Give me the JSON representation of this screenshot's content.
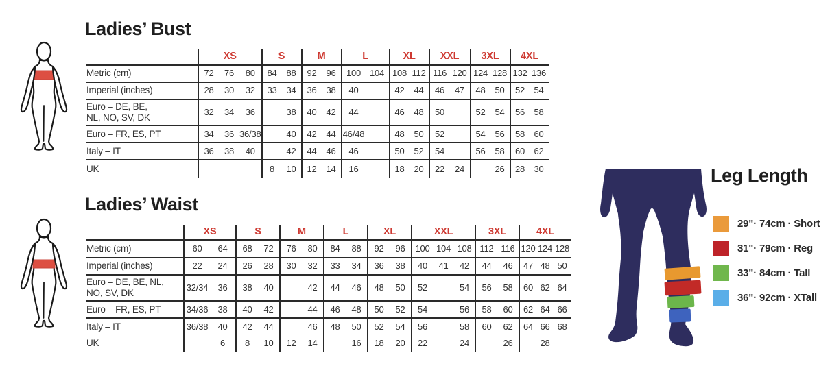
{
  "colors": {
    "accent_red": "#ce3a32",
    "band_red": "#dd4f42",
    "silhouette_navy": "#2e2d5e",
    "table_line": "#2a2a2a",
    "leg_band_orange": "#e8992f",
    "leg_band_red": "#c22a27",
    "leg_band_green": "#6cb64b",
    "leg_band_blue": "#3e63be"
  },
  "bust": {
    "title": "Ladies’ Bust",
    "size_groups": [
      {
        "label": "XS",
        "cols": 3
      },
      {
        "label": "S",
        "cols": 2
      },
      {
        "label": "M",
        "cols": 2
      },
      {
        "label": "L",
        "cols": 2
      },
      {
        "label": "XL",
        "cols": 2
      },
      {
        "label": "XXL",
        "cols": 2
      },
      {
        "label": "3XL",
        "cols": 2
      },
      {
        "label": "4XL",
        "cols": 2
      }
    ],
    "rows": [
      {
        "label": "Metric (cm)",
        "cells": [
          [
            "72",
            "76",
            "80"
          ],
          [
            "84",
            "88"
          ],
          [
            "92",
            "96"
          ],
          [
            "100",
            "104"
          ],
          [
            "108",
            "112"
          ],
          [
            "116",
            "120"
          ],
          [
            "124",
            "128"
          ],
          [
            "132",
            "136"
          ]
        ]
      },
      {
        "label": "Imperial (inches)",
        "cells": [
          [
            "28",
            "30",
            "32"
          ],
          [
            "33",
            "34"
          ],
          [
            "36",
            "38"
          ],
          [
            "40",
            ""
          ],
          [
            "42",
            "44"
          ],
          [
            "46",
            "47"
          ],
          [
            "48",
            "50"
          ],
          [
            "52",
            "54"
          ]
        ]
      },
      {
        "label": "Euro –  DE, BE,\nNL, NO, SV, DK",
        "cells": [
          [
            "32",
            "34",
            "36"
          ],
          [
            "",
            "38"
          ],
          [
            "40",
            "42"
          ],
          [
            "44",
            ""
          ],
          [
            "46",
            "48"
          ],
          [
            "50",
            ""
          ],
          [
            "52",
            "54"
          ],
          [
            "56",
            "58"
          ]
        ]
      },
      {
        "label": "Euro – FR, ES, PT",
        "cells": [
          [
            "34",
            "36",
            "36/38"
          ],
          [
            "",
            "40"
          ],
          [
            "42",
            "44"
          ],
          [
            "46/48",
            ""
          ],
          [
            "48",
            "50"
          ],
          [
            "52",
            ""
          ],
          [
            "54",
            "56"
          ],
          [
            "58",
            "60"
          ]
        ]
      },
      {
        "label": "Italy – IT",
        "cells": [
          [
            "36",
            "38",
            "40"
          ],
          [
            "",
            "42"
          ],
          [
            "44",
            "46"
          ],
          [
            "46",
            ""
          ],
          [
            "50",
            "52"
          ],
          [
            "54",
            ""
          ],
          [
            "56",
            "58"
          ],
          [
            "60",
            "62"
          ]
        ]
      },
      {
        "label": "UK",
        "cells": [
          [
            "",
            "",
            ""
          ],
          [
            "8",
            "10"
          ],
          [
            "12",
            "14"
          ],
          [
            "16",
            ""
          ],
          [
            "18",
            "20"
          ],
          [
            "22",
            "24"
          ],
          [
            "",
            "26"
          ],
          [
            "28",
            "30"
          ]
        ]
      }
    ]
  },
  "waist": {
    "title": "Ladies’ Waist",
    "size_groups": [
      {
        "label": "XS",
        "cols": 2
      },
      {
        "label": "S",
        "cols": 2
      },
      {
        "label": "M",
        "cols": 2
      },
      {
        "label": "L",
        "cols": 2
      },
      {
        "label": "XL",
        "cols": 2
      },
      {
        "label": "XXL",
        "cols": 3
      },
      {
        "label": "3XL",
        "cols": 2
      },
      {
        "label": "4XL",
        "cols": 3
      }
    ],
    "rows": [
      {
        "label": "Metric (cm)",
        "cells": [
          [
            "60",
            "64"
          ],
          [
            "68",
            "72"
          ],
          [
            "76",
            "80"
          ],
          [
            "84",
            "88"
          ],
          [
            "92",
            "96"
          ],
          [
            "100",
            "104",
            "108"
          ],
          [
            "112",
            "116"
          ],
          [
            "120",
            "124",
            "128"
          ]
        ]
      },
      {
        "label": "Imperial (inches)",
        "cells": [
          [
            "22",
            "24"
          ],
          [
            "26",
            "28"
          ],
          [
            "30",
            "32"
          ],
          [
            "33",
            "34"
          ],
          [
            "36",
            "38"
          ],
          [
            "40",
            "41",
            "42"
          ],
          [
            "44",
            "46"
          ],
          [
            "47",
            "48",
            "50"
          ]
        ]
      },
      {
        "label": "Euro – DE, BE, NL,\nNO, SV, DK",
        "cells": [
          [
            "32/34",
            "36"
          ],
          [
            "38",
            "40"
          ],
          [
            "",
            "42"
          ],
          [
            "44",
            "46"
          ],
          [
            "48",
            "50"
          ],
          [
            "52",
            "",
            "54"
          ],
          [
            "56",
            "58"
          ],
          [
            "60",
            "62",
            "64"
          ]
        ]
      },
      {
        "label": "Euro – FR, ES, PT",
        "cells": [
          [
            "34/36",
            "38"
          ],
          [
            "40",
            "42"
          ],
          [
            "",
            "44"
          ],
          [
            "46",
            "48"
          ],
          [
            "50",
            "52"
          ],
          [
            "54",
            "",
            "56"
          ],
          [
            "58",
            "60"
          ],
          [
            "62",
            "64",
            "66"
          ]
        ]
      },
      {
        "label": "Italy – IT",
        "cells": [
          [
            "36/38",
            "40"
          ],
          [
            "42",
            "44"
          ],
          [
            "",
            "46"
          ],
          [
            "48",
            "50"
          ],
          [
            "52",
            "54"
          ],
          [
            "56",
            "",
            "58"
          ],
          [
            "60",
            "62"
          ],
          [
            "64",
            "66",
            "68"
          ]
        ]
      },
      {
        "label": "UK",
        "cells": [
          [
            "",
            "6"
          ],
          [
            "8",
            "10"
          ],
          [
            "12",
            "14"
          ],
          [
            "",
            "16"
          ],
          [
            "18",
            "20"
          ],
          [
            "22",
            "",
            "24"
          ],
          [
            "",
            "26"
          ],
          [
            "",
            "28",
            ""
          ]
        ]
      }
    ]
  },
  "leg_length": {
    "title": "Leg Length",
    "items": [
      {
        "id": "short",
        "swatch_color": "#ea9a3b",
        "label": "29\"· 74cm · Short"
      },
      {
        "id": "reg",
        "swatch_color": "#be2329",
        "label": "31\"· 79cm · Reg"
      },
      {
        "id": "tall",
        "swatch_color": "#70b74d",
        "label": "33\"· 84cm · Tall"
      },
      {
        "id": "xtall",
        "swatch_color": "#5aaee8",
        "label": "36\"· 92cm · XTall"
      }
    ]
  },
  "figures": {
    "bust_figure": "female-silhouette-bust-highlight",
    "waist_figure": "female-silhouette-waist-highlight",
    "leg_figure": "lower-body-silhouette-leg-length-bands"
  }
}
